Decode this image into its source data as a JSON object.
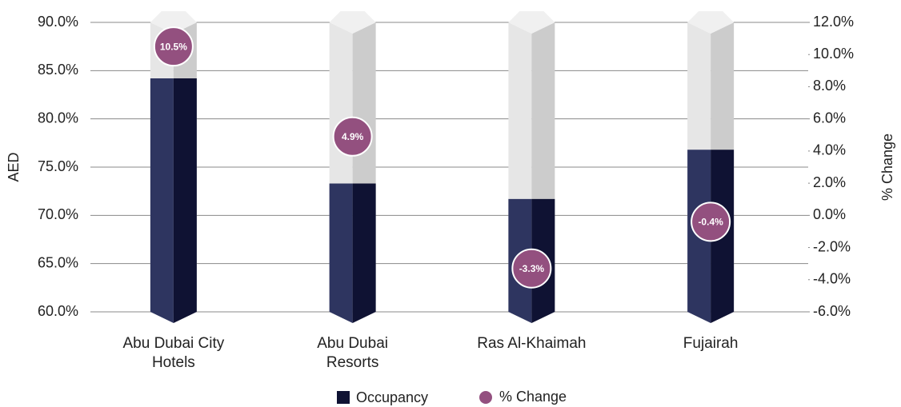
{
  "chart_data": {
    "type": "bar",
    "categories": [
      "Abu Dubai City Hotels",
      "Abu Dubai Resorts",
      "Ras Al-Khaimah",
      "Fujairah"
    ],
    "series": [
      {
        "name": "Occupancy",
        "color": "#0f1233",
        "values": [
          84.2,
          73.3,
          71.7,
          76.8
        ]
      },
      {
        "name": "% Change",
        "color": "#93507f",
        "axis": "y2",
        "values": [
          10.5,
          4.9,
          -3.3,
          -0.4
        ],
        "value_labels": [
          "10.5%",
          "4.9%",
          "-3.3%",
          "-0.4%"
        ]
      }
    ],
    "ylabel": "AED",
    "y2label": "% Change",
    "ylim": [
      60,
      90
    ],
    "yticks": [
      {
        "value": 60,
        "label": "60.0%"
      },
      {
        "value": 65,
        "label": "65.0%"
      },
      {
        "value": 70,
        "label": "70.0%"
      },
      {
        "value": 75,
        "label": "75.0%"
      },
      {
        "value": 80,
        "label": "80.0%"
      },
      {
        "value": 85,
        "label": "85.0%"
      },
      {
        "value": 90,
        "label": "90.0%"
      }
    ],
    "y2lim": [
      -6,
      12
    ],
    "y2ticks": [
      {
        "value": -6,
        "label": "-6.0%"
      },
      {
        "value": -4,
        "label": "-4.0%"
      },
      {
        "value": -2,
        "label": "-2.0%"
      },
      {
        "value": 0,
        "label": "0.0%"
      },
      {
        "value": 2,
        "label": "2.0%"
      },
      {
        "value": 4,
        "label": "4.0%"
      },
      {
        "value": 6,
        "label": "6.0%"
      },
      {
        "value": 8,
        "label": "8.0%"
      },
      {
        "value": 10,
        "label": "10.0%"
      },
      {
        "value": 12,
        "label": "12.0%"
      }
    ],
    "grid": true
  }
}
